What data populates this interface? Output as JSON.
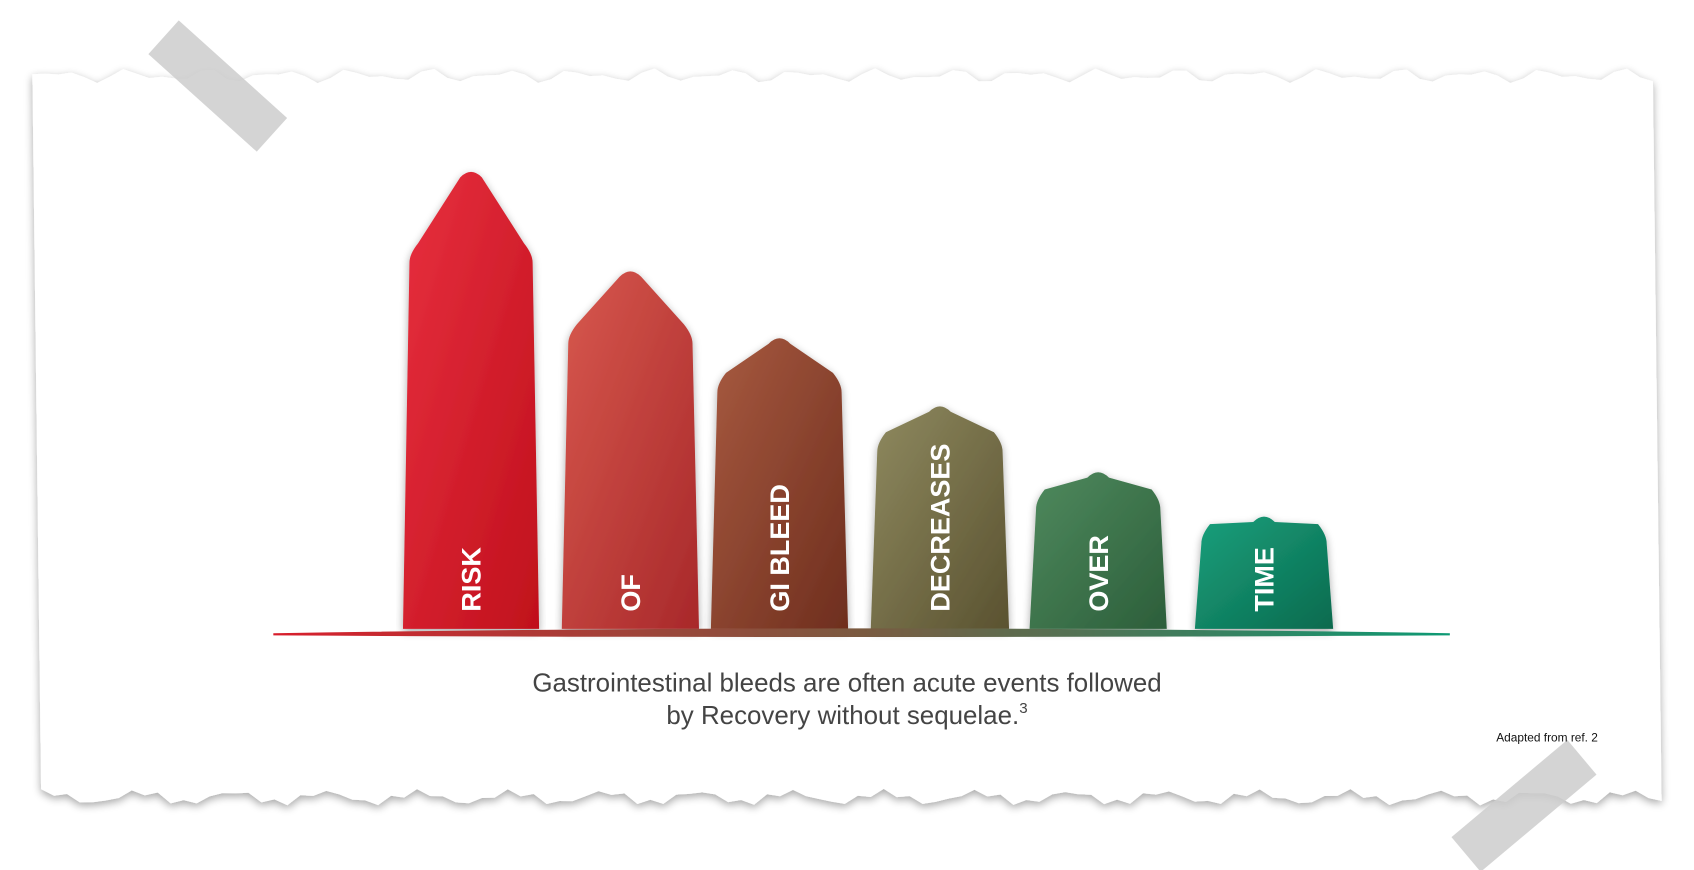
{
  "bars": [
    {
      "label": "RISK"
    },
    {
      "label": "OF"
    },
    {
      "label": "GI BLEED"
    },
    {
      "label": "DECREASES"
    },
    {
      "label": "OVER"
    },
    {
      "label": "TIME"
    }
  ],
  "caption": {
    "line1": "Gastrointestinal bleeds are often acute events followed",
    "line2": "by Recovery without sequelae.",
    "superscript": "3"
  },
  "source": "Adapted from ref. 2"
}
